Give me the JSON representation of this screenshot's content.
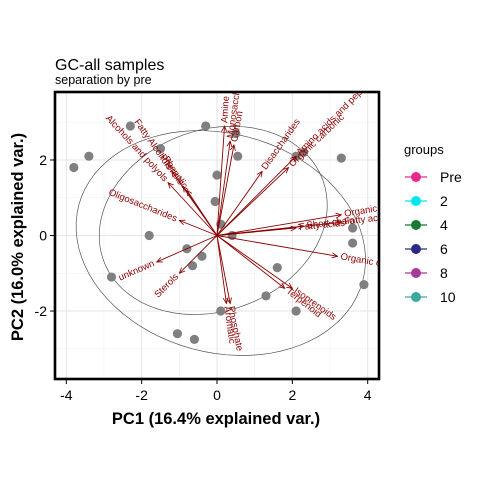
{
  "chart_data": {
    "type": "scatter",
    "title": "GC-all samples",
    "subtitle": "separation by pre",
    "xlabel": "PC1 (16.4% explained var.)",
    "ylabel": "PC2 (16.0% explained var.)",
    "xlim": [
      -4.3,
      4.3
    ],
    "ylim": [
      -3.8,
      3.8
    ],
    "xticks": [
      -4,
      -2,
      0,
      2,
      4
    ],
    "yticks": [
      -2,
      0,
      2
    ],
    "grid": true,
    "legend": {
      "title": "groups",
      "position": "right",
      "entries": [
        {
          "label": "Pre",
          "color": "#e7298a"
        },
        {
          "label": "2",
          "color": "#00e5ee"
        },
        {
          "label": "4",
          "color": "#1b7837"
        },
        {
          "label": "6",
          "color": "#2d2a84"
        },
        {
          "label": "8",
          "color": "#a23b9b"
        },
        {
          "label": "10",
          "color": "#3aa9a0"
        }
      ]
    },
    "point_color": "#808080",
    "arrow_color": "#8b0000",
    "points": [
      {
        "x": -3.8,
        "y": 1.8
      },
      {
        "x": -3.4,
        "y": 2.1
      },
      {
        "x": -2.3,
        "y": 2.9
      },
      {
        "x": -1.5,
        "y": 2.3
      },
      {
        "x": -0.3,
        "y": 2.9
      },
      {
        "x": 0.5,
        "y": 2.7
      },
      {
        "x": 0.55,
        "y": 2.1
      },
      {
        "x": 0.0,
        "y": 1.6
      },
      {
        "x": 2.1,
        "y": 2.1
      },
      {
        "x": 2.3,
        "y": 2.2
      },
      {
        "x": 3.3,
        "y": 2.05
      },
      {
        "x": -0.05,
        "y": 0.9
      },
      {
        "x": 0.1,
        "y": 0.3
      },
      {
        "x": -1.8,
        "y": 0.0
      },
      {
        "x": 0.4,
        "y": 0.0
      },
      {
        "x": -0.8,
        "y": -0.35
      },
      {
        "x": -0.4,
        "y": -0.55
      },
      {
        "x": -0.65,
        "y": -0.8
      },
      {
        "x": 1.6,
        "y": -0.85
      },
      {
        "x": 3.6,
        "y": 0.2
      },
      {
        "x": 3.6,
        "y": -0.2
      },
      {
        "x": 3.9,
        "y": -1.3
      },
      {
        "x": 1.3,
        "y": -1.6
      },
      {
        "x": 2.1,
        "y": -2.0
      },
      {
        "x": -2.8,
        "y": -1.1
      },
      {
        "x": 0.1,
        "y": -2.0
      },
      {
        "x": -1.05,
        "y": -2.6
      },
      {
        "x": -0.6,
        "y": -2.75
      }
    ],
    "arrows": [
      {
        "label": "Alcohols and polyols",
        "x": -1.3,
        "y": 1.4
      },
      {
        "label": "Fatty Alcohols",
        "x": -1.2,
        "y": 1.7
      },
      {
        "label": "Phenols",
        "x": -0.9,
        "y": 1.3
      },
      {
        "label": "Phenolic",
        "x": -0.8,
        "y": 1.2
      },
      {
        "label": "Oligosaccharides",
        "x": -1.0,
        "y": 0.4
      },
      {
        "label": "unknown",
        "x": -1.6,
        "y": -0.7
      },
      {
        "label": "Sterols",
        "x": -1.0,
        "y": -1.0
      },
      {
        "label": "Aromatic",
        "x": 0.25,
        "y": -1.8
      },
      {
        "label": "Phosphate",
        "x": 0.35,
        "y": -1.8
      },
      {
        "label": "Isoprenoids",
        "x": 2.0,
        "y": -1.4
      },
      {
        "label": "Terpenoid",
        "x": 1.8,
        "y": -1.4
      },
      {
        "label": "Organic oxygen",
        "x": 3.2,
        "y": -0.55
      },
      {
        "label": "Organic phosphonic",
        "x": 3.3,
        "y": 0.55
      },
      {
        "label": "Fatty acyl",
        "x": 3.3,
        "y": 0.35
      },
      {
        "label": "Short chain",
        "x": 2.3,
        "y": 0.25
      },
      {
        "label": "Fatty acids",
        "x": 2.1,
        "y": 0.2
      },
      {
        "label": "Amino acids and pep",
        "x": 2.1,
        "y": 2.1
      },
      {
        "label": "Organic carbonic",
        "x": 1.9,
        "y": 1.8
      },
      {
        "label": "Amine",
        "x": 0.2,
        "y": 2.9
      },
      {
        "label": "Monosaccharides",
        "x": 0.35,
        "y": 2.5
      },
      {
        "label": "Carbon",
        "x": 0.45,
        "y": 2.4
      },
      {
        "label": "Disaccharides",
        "x": 1.2,
        "y": 1.7
      }
    ]
  }
}
